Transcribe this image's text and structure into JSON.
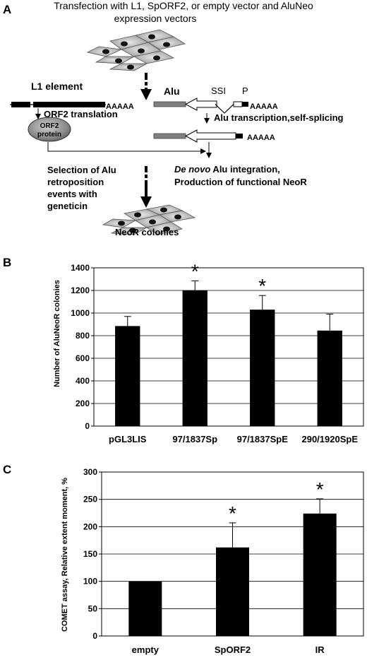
{
  "panel_a": {
    "letter": "A",
    "title_line1": "Transfection with L1, SpORF2, or empty vector and AluNeo",
    "title_line2": "expression vectors",
    "l1_label": "L1 element",
    "polyA_l1": "AAAAA",
    "alu_label": "Alu",
    "ssi_label": "SSI",
    "p_label": "P",
    "polyA_alu": "AAAAA",
    "polyA_alu2": "AAAAA",
    "orf2_translation": "ORF2 translation",
    "orf2_protein_line1": "ORF2",
    "orf2_protein_line2": "protein",
    "alu_transcription": "Alu transcription,self-splicing",
    "selection_line1": "Selection of Alu",
    "selection_line2": "retroposition",
    "selection_line3": "events with",
    "selection_line4": "geneticin",
    "denovo_italic": "De novo",
    "denovo_rest": " Alu integration,",
    "production": "Production of functional NeoR",
    "neor_colonies": "NeoR colonies"
  },
  "chart_data": [
    {
      "panel": "B",
      "type": "bar",
      "categories": [
        "pGL3LIS",
        "97/1837Sp",
        "97/1837SpE",
        "290/1920SpE"
      ],
      "values": [
        885,
        1200,
        1030,
        845
      ],
      "errors": [
        85,
        85,
        125,
        145
      ],
      "significant": [
        false,
        true,
        true,
        false
      ],
      "ylabel": "Number of AluNeoR colonies",
      "ylim": [
        0,
        1400
      ],
      "yticks": [
        "0",
        "200",
        "400",
        "600",
        "800",
        "1000",
        "1200",
        "1400"
      ],
      "grid": true,
      "bar_color": "#000000",
      "star": "*"
    },
    {
      "panel": "C",
      "type": "bar",
      "categories": [
        "empty",
        "SpORF2",
        "IR"
      ],
      "values": [
        100,
        162,
        224
      ],
      "errors": [
        0,
        45,
        27
      ],
      "significant": [
        false,
        true,
        true
      ],
      "ylabel": "COMET assay, Relative extent moment, %",
      "ylim": [
        0,
        300
      ],
      "yticks": [
        "0",
        "50",
        "100",
        "150",
        "200",
        "250",
        "300"
      ],
      "grid": true,
      "bar_color": "#000000",
      "star": "*"
    }
  ]
}
